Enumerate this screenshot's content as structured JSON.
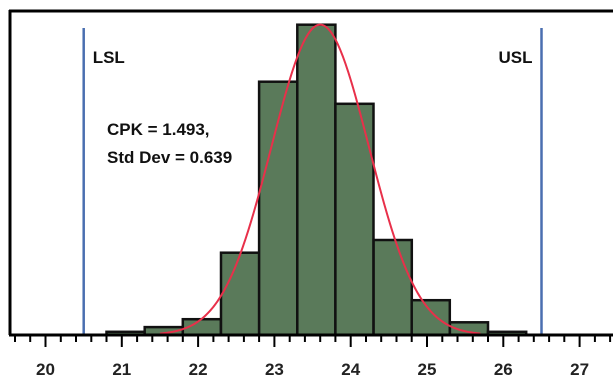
{
  "chart_data": {
    "type": "bar",
    "subtype": "histogram",
    "x_ticks": [
      20,
      21,
      22,
      23,
      24,
      25,
      26,
      27
    ],
    "x_tick_labels": [
      "20",
      "21",
      "22",
      "23",
      "24",
      "25",
      "26",
      "27"
    ],
    "xlim": [
      19.6,
      27.5
    ],
    "ylim": [
      0,
      102
    ],
    "bins": [
      {
        "start": 20.8,
        "end": 21.3,
        "value": 1
      },
      {
        "start": 21.3,
        "end": 21.8,
        "value": 2.5
      },
      {
        "start": 21.8,
        "end": 22.3,
        "value": 5
      },
      {
        "start": 22.3,
        "end": 22.8,
        "value": 26
      },
      {
        "start": 22.8,
        "end": 23.3,
        "value": 80
      },
      {
        "start": 23.3,
        "end": 23.8,
        "value": 98
      },
      {
        "start": 23.8,
        "end": 24.3,
        "value": 73
      },
      {
        "start": 24.3,
        "end": 24.8,
        "value": 30
      },
      {
        "start": 24.8,
        "end": 25.3,
        "value": 11
      },
      {
        "start": 25.3,
        "end": 25.8,
        "value": 4
      },
      {
        "start": 25.8,
        "end": 26.3,
        "value": 1
      }
    ],
    "fit_curve": {
      "type": "normal",
      "mean": 23.6,
      "std_dev": 0.639,
      "peak": 98
    },
    "spec_limits": [
      {
        "label": "LSL",
        "value": 20.5
      },
      {
        "label": "USL",
        "value": 26.5
      }
    ],
    "annotations": {
      "cpk": "CPK = 1.493,",
      "std_dev": "Std Dev = 0.639"
    },
    "grid": false
  },
  "colors": {
    "bar_fill": "#5a7a5a",
    "bar_stroke": "#111111",
    "curve": "#e8304a",
    "spec_line": "#4a6fb0",
    "frame": "#000000"
  }
}
